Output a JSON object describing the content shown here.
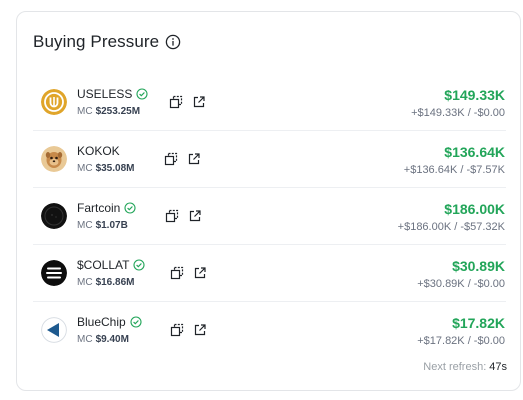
{
  "widget": {
    "title": "Buying Pressure",
    "refresh_label": "Next refresh:",
    "refresh_seconds": "47s"
  },
  "tokens": [
    {
      "name": "USELESS",
      "verified": true,
      "mc_label": "MC",
      "mc": "$253.25M",
      "amount": "$149.33K",
      "flow": "+$149.33K / -$0.00",
      "icon": "useless-logo-icon"
    },
    {
      "name": "KOKOK",
      "verified": false,
      "mc_label": "MC",
      "mc": "$35.08M",
      "amount": "$136.64K",
      "flow": "+$136.64K / -$7.57K",
      "icon": "kokok-logo-icon"
    },
    {
      "name": "Fartcoin",
      "verified": true,
      "mc_label": "MC",
      "mc": "$1.07B",
      "amount": "$186.00K",
      "flow": "+$186.00K / -$57.32K",
      "icon": "fartcoin-logo-icon"
    },
    {
      "name": "$COLLAT",
      "verified": true,
      "mc_label": "MC",
      "mc": "$16.86M",
      "amount": "$30.89K",
      "flow": "+$30.89K / -$0.00",
      "icon": "collat-logo-icon"
    },
    {
      "name": "BlueChip",
      "verified": true,
      "mc_label": "MC",
      "mc": "$9.40M",
      "amount": "$17.82K",
      "flow": "+$17.82K / -$0.00",
      "icon": "bluechip-logo-icon"
    }
  ],
  "colors": {
    "positive": "#22a559",
    "verified": "#22a559",
    "border": "#e3e5e8"
  }
}
